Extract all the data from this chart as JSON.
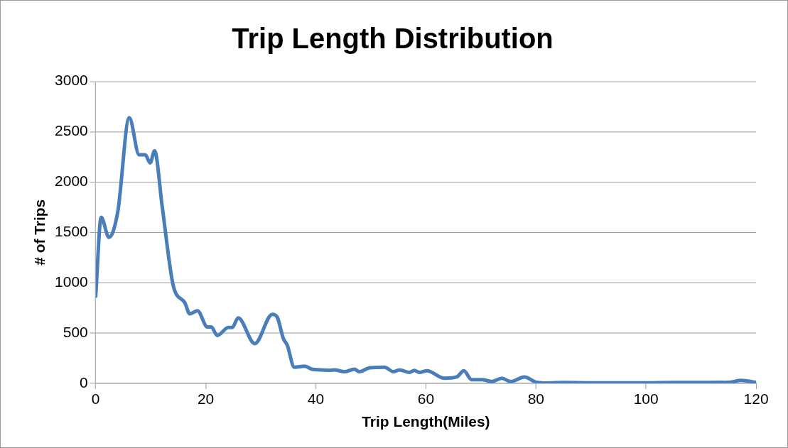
{
  "chart_data": {
    "type": "line",
    "title": "Trip Length Distribution",
    "xlabel": "Trip Length(Miles)",
    "ylabel": "# of Trips",
    "x": [
      0,
      1,
      2.4,
      4,
      6.1,
      7.9,
      9,
      9.9,
      10.7,
      12.1,
      14.1,
      16.2,
      17.1,
      18.5,
      20.3,
      21,
      22.1,
      24.1,
      24.8,
      25.9,
      28.9,
      32.1,
      33,
      34.1,
      34.8,
      36.1,
      38,
      39.3,
      40.7,
      42.5,
      43.4,
      45.2,
      47,
      47.9,
      49.8,
      52.5,
      54.1,
      55.2,
      57,
      57.9,
      58.8,
      60.2,
      63.4,
      65.6,
      66.9,
      68.3,
      70.2,
      72,
      73.8,
      75.4,
      77.9,
      80.1,
      82,
      85,
      90,
      95,
      100,
      105,
      110,
      115,
      117.3,
      120
    ],
    "series": [
      {
        "color": "#4a7ebb",
        "values": [
          865,
          1650,
          1450,
          1700,
          2640,
          2270,
          2270,
          2190,
          2310,
          1750,
          970,
          800,
          690,
          720,
          560,
          560,
          475,
          555,
          555,
          650,
          395,
          685,
          655,
          445,
          380,
          160,
          170,
          140,
          134,
          130,
          134,
          115,
          140,
          115,
          155,
          160,
          115,
          134,
          108,
          128,
          108,
          124,
          50,
          63,
          124,
          37,
          37,
          18,
          50,
          18,
          63,
          10,
          3,
          8,
          5,
          5,
          5,
          8,
          8,
          10,
          29,
          10
        ]
      }
    ],
    "xlim": [
      0,
      120
    ],
    "xticks": [
      0,
      20,
      40,
      60,
      80,
      100,
      120
    ],
    "ylim": [
      0,
      3000
    ],
    "yticks": [
      0,
      500,
      1000,
      1500,
      2000,
      2500,
      3000
    ],
    "grid": "y",
    "legend": false,
    "marker": "none",
    "line_style": "solid"
  }
}
